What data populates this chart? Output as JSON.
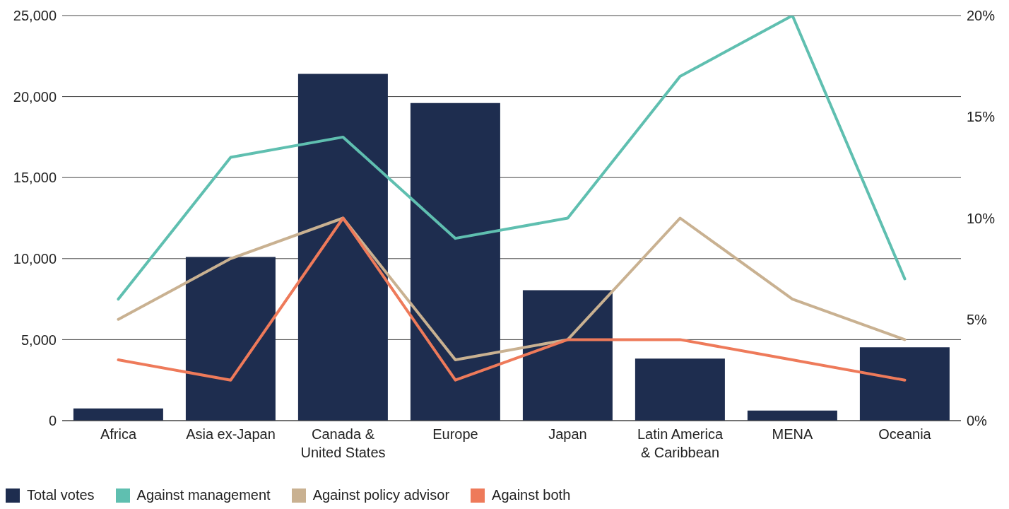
{
  "chart_data": {
    "type": "bar",
    "categories": [
      "Africa",
      "Asia ex-Japan",
      "Canada & United States",
      "Europe",
      "Japan",
      "Latin America & Caribbean",
      "MENA",
      "Oceania"
    ],
    "series": [
      {
        "name": "Total votes",
        "color": "#1e2d4f",
        "values": [
          750,
          10100,
          21400,
          19600,
          8050,
          3830,
          620,
          4530
        ]
      },
      {
        "name": "Against management",
        "type": "line",
        "axis": "y2",
        "color": "#5fbfb0",
        "values": [
          6,
          13,
          14,
          9,
          10,
          17,
          20,
          7
        ]
      },
      {
        "name": "Against policy advisor",
        "type": "line",
        "axis": "y2",
        "color": "#c9b191",
        "values": [
          5,
          8,
          10,
          3,
          4,
          10,
          6,
          4
        ]
      },
      {
        "name": "Against both",
        "type": "line",
        "axis": "y2",
        "color": "#ee7a5a",
        "values": [
          3,
          2,
          10,
          2,
          4,
          4,
          3,
          2
        ]
      }
    ],
    "ylim": [
      0,
      25000
    ],
    "yticks": [
      0,
      {
        "value": 5000,
        "label": "5,000"
      },
      {
        "value": 10000,
        "label": "10,000"
      },
      {
        "value": 15000,
        "label": "15,000"
      },
      {
        "value": 20000,
        "label": "20,000"
      },
      {
        "value": 25000,
        "label": "25,000"
      }
    ],
    "y2lim": [
      0,
      20
    ],
    "y2ticks": [
      {
        "value": 0,
        "label": "0%"
      },
      {
        "value": 5,
        "label": "5%"
      },
      {
        "value": 10,
        "label": "10%"
      },
      {
        "value": 15,
        "label": "15%"
      },
      {
        "value": 20,
        "label": "20%"
      }
    ],
    "grid": "y",
    "legend": "bottom left"
  }
}
